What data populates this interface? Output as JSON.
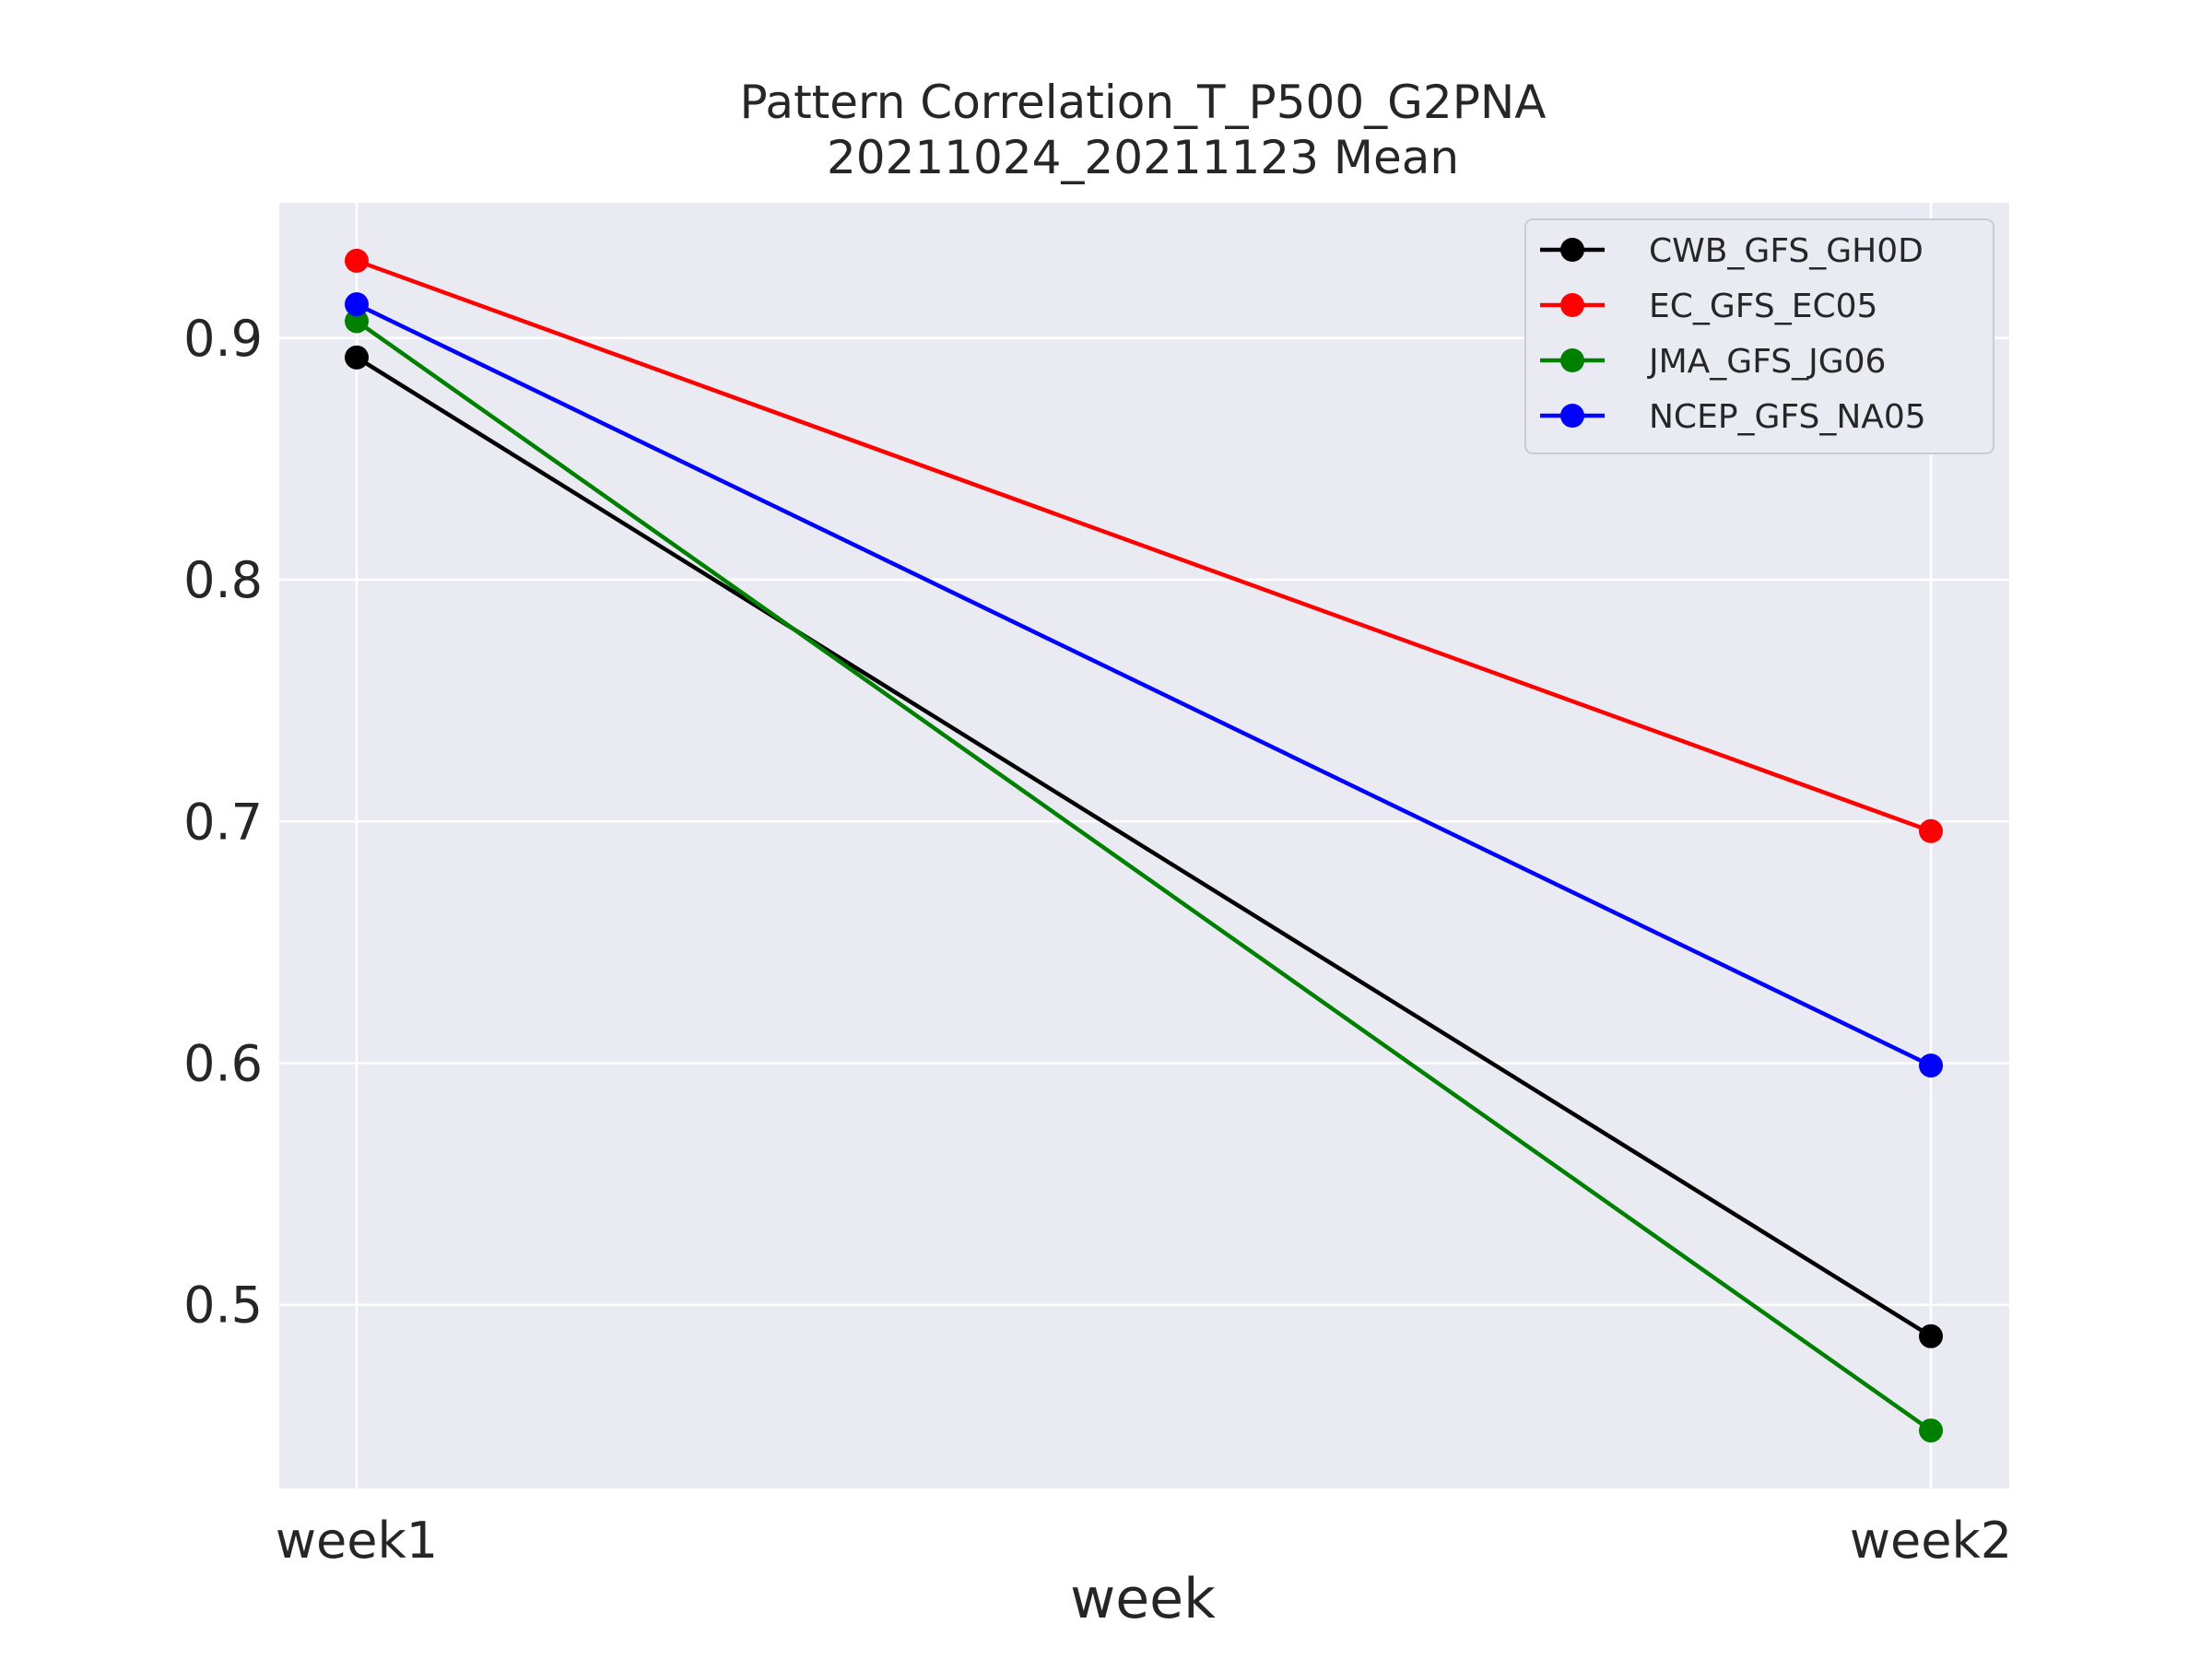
{
  "chart_data": {
    "type": "line",
    "title": "Pattern Correlation_T_P500_G2PNA",
    "subtitle": "20211024_20211123 Mean",
    "xlabel": "week",
    "ylabel": "",
    "categories": [
      "week1",
      "week2"
    ],
    "ylim": [
      0.424,
      0.956
    ],
    "yticks": [
      0.5,
      0.6,
      0.7,
      0.8,
      0.9
    ],
    "grid": true,
    "legend_position": "top-right",
    "series": [
      {
        "name": "CWB_GFS_GH0D",
        "color": "#000000",
        "values": [
          0.892,
          0.487
        ]
      },
      {
        "name": "EC_GFS_EC05",
        "color": "#ff0000",
        "values": [
          0.932,
          0.696
        ]
      },
      {
        "name": "JMA_GFS_JG06",
        "color": "#008000",
        "values": [
          0.907,
          0.448
        ]
      },
      {
        "name": "NCEP_GFS_NA05",
        "color": "#0000ff",
        "values": [
          0.914,
          0.599
        ]
      }
    ],
    "colors": {
      "plot_background": "#eaeaf2",
      "grid": "#ffffff",
      "text": "#262626"
    }
  }
}
